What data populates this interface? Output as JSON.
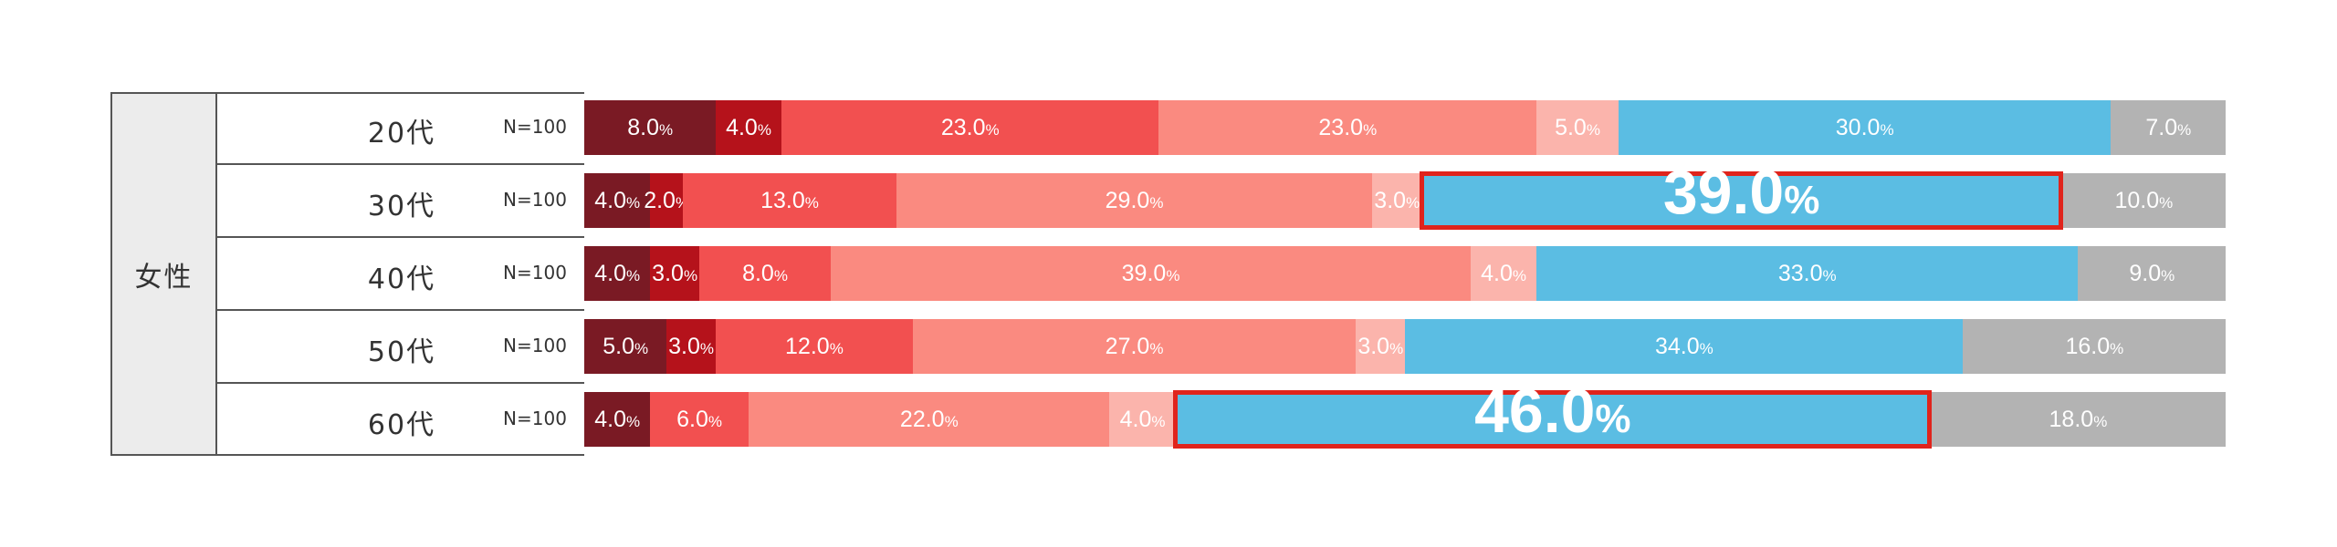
{
  "group_label": "女性",
  "colors": {
    "c1": "#7a1a24",
    "c2": "#b5121b",
    "c3": "#f25050",
    "c4": "#fa8a80",
    "c5": "#fbb4ac",
    "c6": "#5bbde3",
    "c7": "#b3b3b3",
    "highlight": "#e0241c"
  },
  "percent_suffix": "%",
  "chart_data": {
    "type": "bar",
    "orientation": "horizontal-stacked-100",
    "categories": [
      "20代",
      "30代",
      "40代",
      "50代",
      "60代"
    ],
    "sample_sizes": [
      "N=100",
      "N=100",
      "N=100",
      "N=100",
      "N=100"
    ],
    "series": [
      {
        "color": "#7a1a24",
        "values": [
          8.0,
          4.0,
          4.0,
          5.0,
          4.0
        ]
      },
      {
        "color": "#b5121b",
        "values": [
          4.0,
          2.0,
          3.0,
          3.0,
          0.0
        ]
      },
      {
        "color": "#f25050",
        "values": [
          23.0,
          13.0,
          8.0,
          12.0,
          6.0
        ]
      },
      {
        "color": "#fa8a80",
        "values": [
          23.0,
          29.0,
          39.0,
          27.0,
          22.0
        ]
      },
      {
        "color": "#fbb4ac",
        "values": [
          5.0,
          3.0,
          4.0,
          3.0,
          4.0
        ]
      },
      {
        "color": "#5bbde3",
        "values": [
          30.0,
          39.0,
          33.0,
          34.0,
          46.0
        ]
      },
      {
        "color": "#b3b3b3",
        "values": [
          7.0,
          10.0,
          9.0,
          16.0,
          18.0
        ]
      }
    ],
    "value_labels": [
      [
        "8.0",
        "4.0",
        "23.0",
        "23.0",
        "5.0",
        "30.0",
        "7.0"
      ],
      [
        "4.0",
        "2.0",
        "13.0",
        "29.0",
        "3.0",
        "39.0",
        "10.0"
      ],
      [
        "4.0",
        "3.0",
        "8.0",
        "39.0",
        "4.0",
        "33.0",
        "9.0"
      ],
      [
        "5.0",
        "3.0",
        "12.0",
        "27.0",
        "3.0",
        "34.0",
        "16.0"
      ],
      [
        "4.0",
        "",
        "6.0",
        "22.0",
        "4.0",
        "46.0",
        "18.0"
      ]
    ],
    "highlights": [
      {
        "row": 1,
        "series": 5,
        "label": "39.0"
      },
      {
        "row": 4,
        "series": 5,
        "label": "46.0"
      }
    ]
  }
}
